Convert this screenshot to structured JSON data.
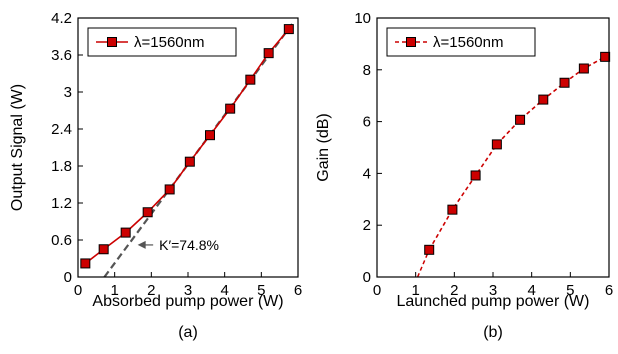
{
  "chart_data": [
    {
      "type": "line",
      "panel_label": "(a)",
      "xlabel": "Absorbed pump power (W)",
      "ylabel": "Output Signal (W)",
      "xlim": [
        0,
        6
      ],
      "ylim": [
        0,
        4.2
      ],
      "x_ticks": [
        0,
        1,
        2,
        3,
        4,
        5,
        6
      ],
      "y_ticks": [
        0,
        0.6,
        1.2,
        1.8,
        2.4,
        3,
        3.6,
        4.2
      ],
      "y_tick_labels": [
        "0",
        "0.6",
        "1.2",
        "1.8",
        "2.4",
        "3",
        "3.6",
        "4.2"
      ],
      "grid": false,
      "legend_position": "top-left",
      "series": [
        {
          "name": "λ=1560nm",
          "line_style": "solid",
          "color": "#cc0000",
          "marker": "square",
          "x": [
            0.2,
            0.7,
            1.3,
            1.9,
            2.5,
            3.05,
            3.6,
            4.15,
            4.7,
            5.2,
            5.75
          ],
          "y": [
            0.22,
            0.45,
            0.72,
            1.05,
            1.42,
            1.87,
            2.3,
            2.73,
            3.2,
            3.63,
            4.02
          ]
        }
      ],
      "fit_line": {
        "line_style": "dashed",
        "color": "#555555",
        "x": [
          0.72,
          5.9
        ],
        "y": [
          0.0,
          4.15
        ]
      },
      "annotation": {
        "text": "K′=74.8%",
        "arrow_from": [
          2.05,
          0.52
        ],
        "arrow_to": [
          1.3,
          0.52
        ]
      }
    },
    {
      "type": "line",
      "panel_label": "(b)",
      "xlabel": "Launched pump power (W)",
      "ylabel": "Gain (dB)",
      "xlim": [
        0,
        6
      ],
      "ylim": [
        0,
        10
      ],
      "x_ticks": [
        0,
        1,
        2,
        3,
        4,
        5,
        6
      ],
      "y_ticks": [
        0,
        2,
        4,
        6,
        8,
        10
      ],
      "y_tick_labels": [
        "0",
        "2",
        "4",
        "6",
        "8",
        "10"
      ],
      "grid": false,
      "legend_position": "top-left",
      "series": [
        {
          "name": "λ=1560nm",
          "line_style": "dashed",
          "color": "#cc0000",
          "marker": "square",
          "x": [
            1.35,
            1.95,
            2.55,
            3.1,
            3.7,
            4.3,
            4.85,
            5.35,
            5.9
          ],
          "y": [
            1.05,
            2.6,
            3.92,
            5.12,
            6.07,
            6.85,
            7.5,
            8.05,
            8.5
          ]
        }
      ],
      "lead_in": {
        "x": [
          1.05,
          1.35
        ],
        "y": [
          0,
          1.05
        ]
      }
    }
  ]
}
